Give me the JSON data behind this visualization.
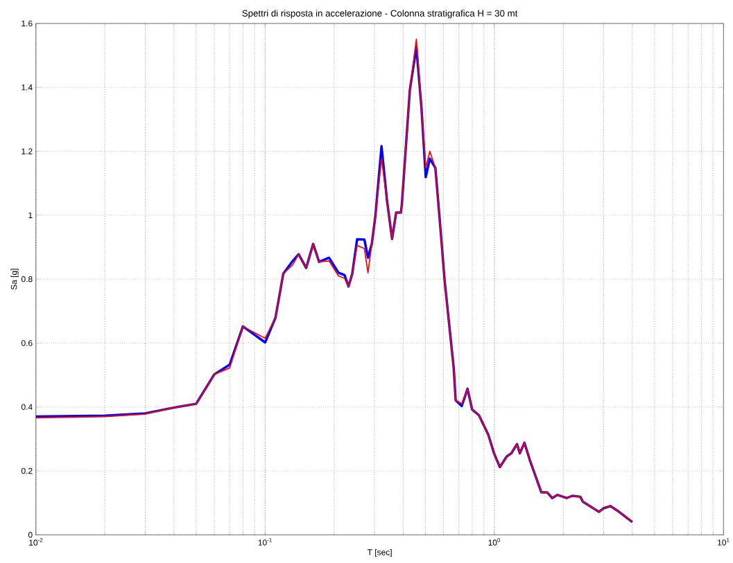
{
  "chart_data": {
    "type": "line",
    "title": "Spettri di risposta in accelerazione - Colonna stratigrafica H = 30 mt",
    "xlabel": "T [sec]",
    "ylabel": "Sa [g]",
    "log": "x",
    "grid": true,
    "x": [
      0.01,
      0.02,
      0.03,
      0.04,
      0.05,
      0.06,
      0.07,
      0.08,
      0.1,
      0.111,
      0.12,
      0.132,
      0.14,
      0.151,
      0.162,
      0.172,
      0.19,
      0.209,
      0.222,
      0.231,
      0.24,
      0.252,
      0.271,
      0.281,
      0.292,
      0.303,
      0.322,
      0.34,
      0.358,
      0.373,
      0.391,
      0.395,
      0.428,
      0.457,
      0.481,
      0.502,
      0.523,
      0.553,
      0.586,
      0.607,
      0.665,
      0.678,
      0.721,
      0.764,
      0.8,
      0.857,
      0.941,
      0.997,
      1.057,
      1.132,
      1.186,
      1.256,
      1.292,
      1.353,
      1.428,
      1.603,
      1.698,
      1.79,
      1.884,
      2.066,
      2.189,
      2.374,
      2.43,
      2.858,
      2.993,
      3.207,
      3.436,
      4.0
    ],
    "series": [
      {
        "color": "#0000ff",
        "values": [
          0.37,
          0.373,
          0.38,
          0.398,
          0.41,
          0.502,
          0.532,
          0.652,
          0.602,
          0.68,
          0.817,
          0.857,
          0.878,
          0.835,
          0.91,
          0.854,
          0.867,
          0.82,
          0.813,
          0.777,
          0.817,
          0.925,
          0.924,
          0.867,
          0.91,
          1.0,
          1.216,
          1.047,
          0.926,
          1.008,
          1.008,
          1.034,
          1.393,
          1.526,
          1.335,
          1.119,
          1.177,
          1.148,
          0.932,
          0.795,
          0.522,
          0.421,
          0.403,
          0.457,
          0.392,
          0.374,
          0.313,
          0.255,
          0.212,
          0.245,
          0.255,
          0.284,
          0.255,
          0.288,
          0.234,
          0.133,
          0.133,
          0.115,
          0.125,
          0.115,
          0.122,
          0.119,
          0.104,
          0.072,
          0.083,
          0.09,
          0.076,
          0.04
        ]
      },
      {
        "color": "#ff0000",
        "values": [
          0.366,
          0.37,
          0.378,
          0.398,
          0.41,
          0.502,
          0.522,
          0.652,
          0.615,
          0.68,
          0.817,
          0.845,
          0.878,
          0.835,
          0.91,
          0.854,
          0.857,
          0.81,
          0.803,
          0.777,
          0.817,
          0.905,
          0.896,
          0.82,
          0.91,
          1.0,
          1.177,
          1.047,
          0.926,
          1.008,
          1.008,
          1.034,
          1.393,
          1.551,
          1.335,
          1.148,
          1.2,
          1.148,
          0.932,
          0.795,
          0.522,
          0.421,
          0.41,
          0.457,
          0.392,
          0.374,
          0.313,
          0.255,
          0.212,
          0.245,
          0.255,
          0.284,
          0.255,
          0.288,
          0.234,
          0.133,
          0.133,
          0.115,
          0.125,
          0.115,
          0.122,
          0.119,
          0.104,
          0.072,
          0.083,
          0.09,
          0.076,
          0.04
        ]
      }
    ],
    "xlim": [
      0.01,
      10
    ],
    "xticks": [
      {
        "value": 0.01,
        "label": "10$^{-2}$"
      },
      {
        "value": 0.1,
        "label": "10$^{-1}$"
      },
      {
        "value": 1,
        "label": "10$^{0}$"
      },
      {
        "value": 10,
        "label": "10$^{1}$"
      }
    ],
    "ylim": [
      0,
      1.6
    ],
    "yticks": [
      0,
      0.2,
      0.4,
      0.6,
      0.8,
      1,
      1.2,
      1.4,
      1.6
    ]
  }
}
